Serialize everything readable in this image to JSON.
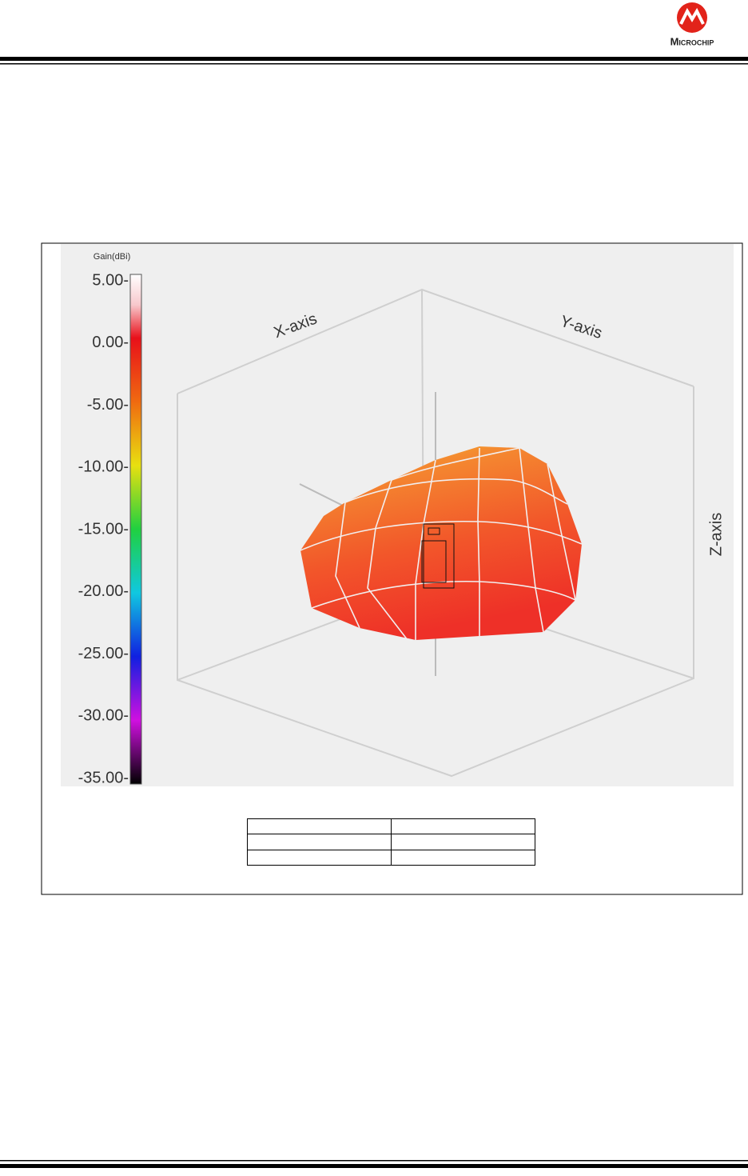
{
  "header": {
    "logo_text": "Microchip"
  },
  "figure": {
    "colorbar": {
      "title": "Gain(dBi)",
      "ticks": [
        "5.00-",
        "0.00-",
        "-5.00-",
        "-10.00-",
        "-15.00-",
        "-20.00-",
        "-25.00-",
        "-30.00-",
        "-35.00-"
      ]
    },
    "axes": {
      "x": "X-axis",
      "y": "Y-axis",
      "z": "Z-axis"
    }
  }
}
